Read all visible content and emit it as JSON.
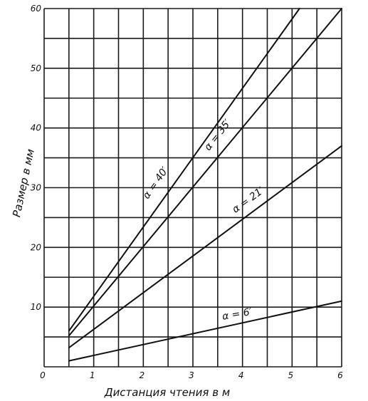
{
  "chart_data": {
    "type": "line",
    "title": "",
    "xlabel": "Дистанция чтения в м",
    "ylabel": "Размер в мм",
    "xlim": [
      0,
      6
    ],
    "ylim": [
      0,
      60
    ],
    "x_ticks": [
      0,
      1,
      2,
      3,
      4,
      5,
      6
    ],
    "y_ticks": [
      10,
      20,
      30,
      40,
      50,
      60
    ],
    "grid": true,
    "legend": "none",
    "series": [
      {
        "name": "α = 40′",
        "x": [
          0.5,
          5.15
        ],
        "y": [
          6.0,
          60.0
        ],
        "label_at": [
          2.3,
          30.5
        ],
        "label_rotate": -55
      },
      {
        "name": "α = 35′",
        "x": [
          0.5,
          6.0
        ],
        "y": [
          5.2,
          60.0
        ],
        "label_at": [
          3.55,
          38.5
        ],
        "label_rotate": -52
      },
      {
        "name": "α = 21′",
        "x": [
          0.5,
          6.0
        ],
        "y": [
          3.2,
          37.0
        ],
        "label_at": [
          4.15,
          27.5
        ],
        "label_rotate": -36
      },
      {
        "name": "α = 6′",
        "x": [
          0.5,
          6.0
        ],
        "y": [
          1.0,
          11.0
        ],
        "label_at": [
          3.9,
          8.3
        ],
        "label_rotate": -10
      }
    ]
  }
}
